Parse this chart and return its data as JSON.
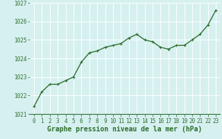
{
  "x": [
    0,
    1,
    2,
    3,
    4,
    5,
    6,
    7,
    8,
    9,
    10,
    11,
    12,
    13,
    14,
    15,
    16,
    17,
    18,
    19,
    20,
    21,
    22,
    23
  ],
  "y": [
    1021.4,
    1022.2,
    1022.6,
    1022.6,
    1022.8,
    1023.0,
    1023.8,
    1024.3,
    1024.4,
    1024.6,
    1024.7,
    1024.8,
    1025.1,
    1025.3,
    1025.0,
    1024.9,
    1024.6,
    1024.5,
    1024.7,
    1024.7,
    1025.0,
    1025.3,
    1025.8,
    1026.6
  ],
  "ylim": [
    1021,
    1027
  ],
  "yticks": [
    1021,
    1022,
    1023,
    1024,
    1025,
    1026,
    1027
  ],
  "xticks": [
    0,
    1,
    2,
    3,
    4,
    5,
    6,
    7,
    8,
    9,
    10,
    11,
    12,
    13,
    14,
    15,
    16,
    17,
    18,
    19,
    20,
    21,
    22,
    23
  ],
  "line_color": "#2d6e2d",
  "marker": "+",
  "marker_size": 3,
  "line_width": 1.0,
  "background_color": "#d6f0f0",
  "grid_color": "#ffffff",
  "xlabel": "Graphe pression niveau de la mer (hPa)",
  "xlabel_fontsize": 7,
  "tick_fontsize": 5.5,
  "ytick_fontsize": 5.5
}
